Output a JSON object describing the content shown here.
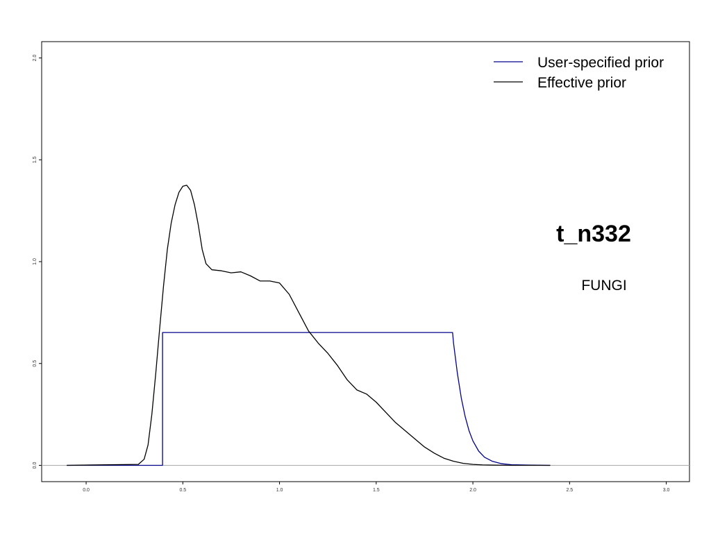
{
  "chart_data": {
    "type": "line",
    "title": "",
    "xlabel": "",
    "ylabel": "",
    "xlim": [
      -0.23,
      3.12
    ],
    "ylim": [
      -0.08,
      2.08
    ],
    "x_ticks": [
      "0.0",
      "0.5",
      "1.0",
      "1.5",
      "2.0",
      "2.5",
      "3.0"
    ],
    "y_ticks": [
      "0.0",
      "0.5",
      "1.0",
      "1.5",
      "2.0"
    ],
    "grid": false,
    "legend_position": "top-right",
    "baseline": 0,
    "series": [
      {
        "name": "User-specified prior",
        "color": "#00008b",
        "x": [
          -0.1,
          0.395,
          0.395,
          1.895,
          1.9,
          1.92,
          1.94,
          1.96,
          1.98,
          2.0,
          2.03,
          2.06,
          2.1,
          2.15,
          2.2,
          2.3,
          2.4
        ],
        "y": [
          0,
          0,
          0.652,
          0.652,
          0.6,
          0.45,
          0.33,
          0.24,
          0.17,
          0.12,
          0.07,
          0.04,
          0.02,
          0.008,
          0.003,
          0.001,
          0
        ]
      },
      {
        "name": "Effective prior",
        "color": "#000000",
        "x": [
          -0.1,
          0.27,
          0.3,
          0.32,
          0.34,
          0.36,
          0.38,
          0.4,
          0.42,
          0.44,
          0.46,
          0.48,
          0.5,
          0.52,
          0.54,
          0.56,
          0.58,
          0.6,
          0.62,
          0.65,
          0.7,
          0.75,
          0.8,
          0.85,
          0.9,
          0.95,
          1.0,
          1.05,
          1.1,
          1.15,
          1.2,
          1.25,
          1.3,
          1.35,
          1.4,
          1.45,
          1.5,
          1.55,
          1.6,
          1.65,
          1.7,
          1.75,
          1.8,
          1.85,
          1.9,
          1.95,
          2.0,
          2.05,
          2.1,
          2.2,
          2.3,
          2.4
        ],
        "y": [
          0,
          0.005,
          0.03,
          0.1,
          0.25,
          0.45,
          0.67,
          0.88,
          1.06,
          1.19,
          1.28,
          1.34,
          1.37,
          1.375,
          1.35,
          1.28,
          1.18,
          1.06,
          0.99,
          0.96,
          0.955,
          0.945,
          0.95,
          0.93,
          0.905,
          0.905,
          0.895,
          0.84,
          0.75,
          0.66,
          0.6,
          0.55,
          0.49,
          0.42,
          0.37,
          0.35,
          0.31,
          0.26,
          0.21,
          0.17,
          0.13,
          0.09,
          0.06,
          0.035,
          0.02,
          0.01,
          0.005,
          0.002,
          0.001,
          0,
          0,
          0
        ]
      }
    ],
    "annotations": [
      "t_n332",
      "FUNGI"
    ]
  }
}
